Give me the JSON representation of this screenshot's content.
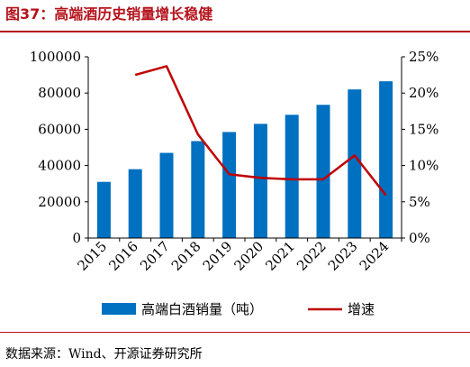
{
  "figure": {
    "title": "图37：高端酒历史销量增长稳健",
    "source": "数据来源：Wind、开源证券研究所"
  },
  "colors": {
    "bar": "#0070c0",
    "line": "#c00000",
    "accent": "#b5121b"
  },
  "chart_data": {
    "type": "bar",
    "categories": [
      "2015",
      "2016",
      "2017",
      "2018",
      "2019",
      "2020",
      "2021",
      "2022",
      "2023",
      "2024"
    ],
    "series": [
      {
        "name": "高端白酒销量（吨）",
        "type": "bar",
        "axis": "left",
        "values": [
          31000,
          38000,
          47000,
          53500,
          58500,
          63000,
          68000,
          73500,
          82000,
          86500
        ]
      },
      {
        "name": "增速",
        "type": "line",
        "axis": "right",
        "values": [
          null,
          0.225,
          0.237,
          0.143,
          0.088,
          0.083,
          0.081,
          0.081,
          0.114,
          0.059
        ]
      }
    ],
    "y_left": {
      "ylim": [
        0,
        100000
      ],
      "ticks": [
        0,
        20000,
        40000,
        60000,
        80000,
        100000
      ],
      "tick_labels": [
        "0",
        "20000",
        "40000",
        "60000",
        "80000",
        "100000"
      ]
    },
    "y_right": {
      "ylim": [
        0,
        0.25
      ],
      "ticks": [
        0,
        0.05,
        0.1,
        0.15,
        0.2,
        0.25
      ],
      "tick_labels": [
        "0%",
        "5%",
        "10%",
        "15%",
        "20%",
        "25%"
      ]
    },
    "grid": false,
    "legend": "bottom"
  }
}
